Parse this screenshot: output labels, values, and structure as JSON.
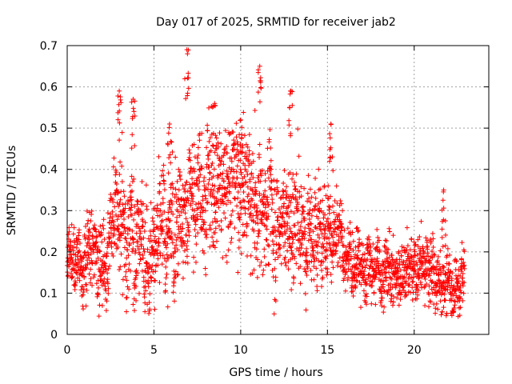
{
  "chart_data": {
    "type": "scatter",
    "title": "Day 017 of 2025, SRMTID for receiver jab2",
    "xlabel": "GPS time / hours",
    "ylabel": "SRMTID / TECUs",
    "xlim": [
      0,
      24.3
    ],
    "ylim": [
      0,
      0.7
    ],
    "x_ticks": [
      0,
      5,
      10,
      15,
      20
    ],
    "x_tick_labels": [
      "0",
      "5",
      "10",
      "15",
      "20"
    ],
    "y_ticks": [
      0,
      0.1,
      0.2,
      0.3,
      0.4,
      0.5,
      0.6,
      0.7
    ],
    "y_tick_labels": [
      "0",
      "0.1",
      "0.2",
      "0.3",
      "0.4",
      "0.5",
      "0.6",
      "0.7"
    ],
    "grid": true,
    "marker": "plus",
    "series_color": "#ff0000",
    "time_span_hours": [
      0,
      22.9
    ],
    "trend_profile": {
      "hours": [
        0.0,
        1.0,
        2.0,
        2.5,
        3.0,
        4.0,
        5.0,
        6.0,
        7.0,
        8.0,
        9.0,
        10.0,
        11.0,
        12.0,
        13.0,
        14.0,
        15.0,
        15.6,
        16.0,
        17.0,
        18.0,
        19.0,
        20.0,
        21.0,
        22.0,
        22.9
      ],
      "median": [
        0.18,
        0.18,
        0.21,
        0.25,
        0.28,
        0.22,
        0.24,
        0.27,
        0.33,
        0.37,
        0.36,
        0.35,
        0.33,
        0.3,
        0.29,
        0.27,
        0.27,
        0.22,
        0.2,
        0.17,
        0.16,
        0.15,
        0.15,
        0.15,
        0.13,
        0.14
      ],
      "spread": [
        0.05,
        0.06,
        0.06,
        0.08,
        0.1,
        0.09,
        0.08,
        0.09,
        0.1,
        0.1,
        0.1,
        0.1,
        0.1,
        0.09,
        0.09,
        0.08,
        0.08,
        0.06,
        0.05,
        0.05,
        0.05,
        0.05,
        0.05,
        0.05,
        0.05,
        0.05
      ]
    },
    "notable_peaks": [
      {
        "x": 3.0,
        "y": 0.59
      },
      {
        "x": 3.8,
        "y": 0.57
      },
      {
        "x": 5.9,
        "y": 0.51
      },
      {
        "x": 6.9,
        "y": 0.69
      },
      {
        "x": 8.5,
        "y": 0.56
      },
      {
        "x": 10.0,
        "y": 0.52
      },
      {
        "x": 11.1,
        "y": 0.65
      },
      {
        "x": 12.9,
        "y": 0.59
      },
      {
        "x": 15.2,
        "y": 0.51
      },
      {
        "x": 21.7,
        "y": 0.35
      }
    ]
  }
}
